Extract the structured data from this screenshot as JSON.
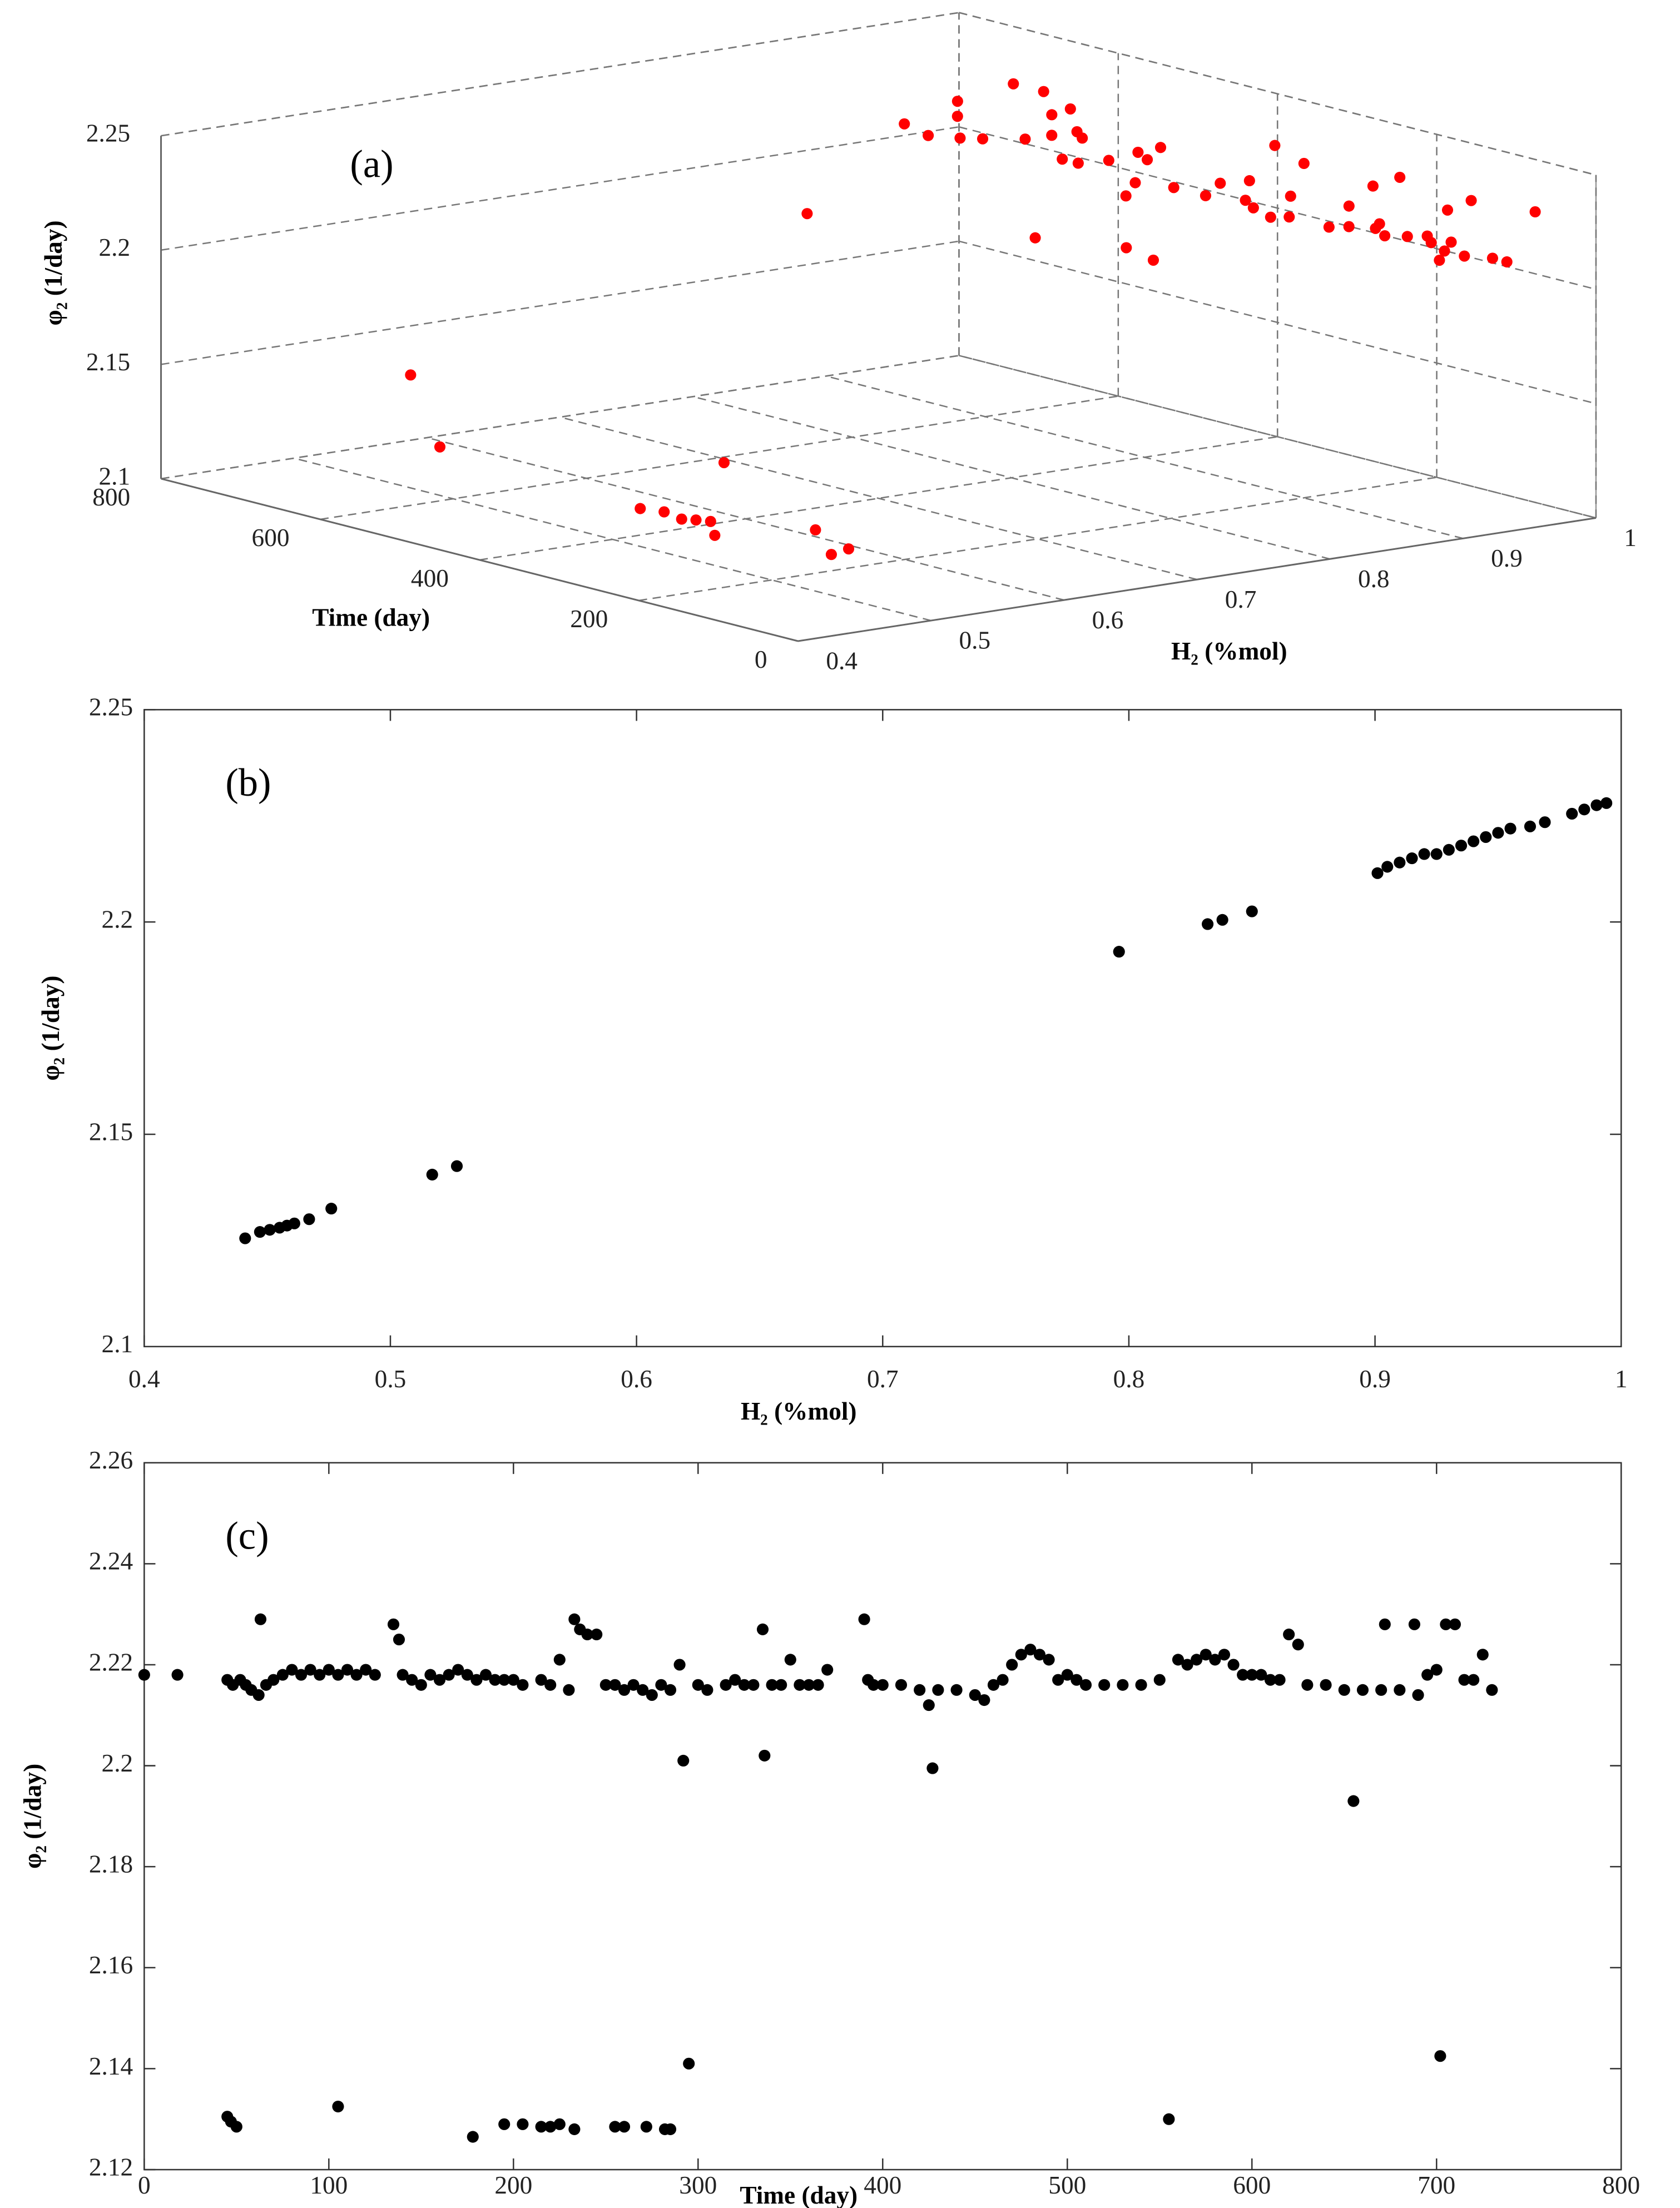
{
  "chart_data": [
    {
      "type": "scatter3d",
      "annotation": "(a)",
      "xlabel": "H₂ (%mol)",
      "ylabel": "Time (day)",
      "zlabel": "φ₂ (1/day)",
      "color": "#ff0000",
      "grid": true,
      "xlim": [
        0.4,
        1
      ],
      "xticks": [
        0.4,
        0.5,
        0.6,
        0.7,
        0.8,
        0.9,
        1
      ],
      "ylim": [
        0,
        800
      ],
      "yticks": [
        0,
        200,
        400,
        600,
        800
      ],
      "zlim": [
        2.1,
        2.25
      ],
      "zticks": [
        2.1,
        2.15,
        2.2,
        2.25
      ],
      "x": [
        0.933,
        0.933,
        0.928,
        0.917,
        0.992,
        0.928,
        0.939,
        0.933,
        0.939,
        0.933,
        0.987,
        0.971,
        0.928,
        0.933,
        0.939,
        0.928,
        0.922,
        0.949,
        0.992,
        0.976,
        0.922,
        0.917,
        0.944,
        0.842,
        0.521,
        0.922,
        0.928,
        0.981,
        0.848,
        0.949,
        0.922,
        0.939,
        0.992,
        0.922,
        0.901,
        0.834,
        0.917,
        0.944,
        0.96,
        0.949,
        0.933,
        0.922,
        0.922,
        0.463,
        0.949,
        0.954,
        0.944,
        0.933,
        0.976,
        0.965,
        0.922,
        0.799,
        0.917,
        0.987,
        0.911,
        0.939,
        0.529,
        0.987,
        0.954,
        0.917,
        0.465,
        0.455,
        0.476,
        0.444,
        0.457,
        0.455,
        0.452,
        0.455,
        0.452
      ],
      "y": [
        0,
        18,
        45,
        58,
        63,
        70,
        80,
        95,
        110,
        125,
        135,
        138,
        145,
        165,
        170,
        190,
        205,
        225,
        233,
        240,
        255,
        270,
        290,
        292,
        295,
        300,
        320,
        335,
        336,
        350,
        360,
        370,
        390,
        400,
        425,
        427,
        440,
        470,
        480,
        490,
        500,
        520,
        540,
        555,
        560,
        575,
        590,
        605,
        620,
        625,
        640,
        655,
        660,
        672,
        690,
        700,
        702,
        710,
        725,
        730,
        45,
        50,
        105,
        178,
        205,
        220,
        233,
        260,
        285
      ],
      "z": [
        2.218,
        2.218,
        2.217,
        2.215,
        2.229,
        2.217,
        2.219,
        2.218,
        2.219,
        2.218,
        2.228,
        2.225,
        2.217,
        2.218,
        2.219,
        2.217,
        2.216,
        2.221,
        2.229,
        2.226,
        2.216,
        2.215,
        2.22,
        2.201,
        2.141,
        2.216,
        2.217,
        2.227,
        2.202,
        2.221,
        2.216,
        2.219,
        2.229,
        2.216,
        2.212,
        2.1995,
        2.215,
        2.22,
        2.223,
        2.221,
        2.218,
        2.216,
        2.216,
        2.13,
        2.221,
        2.222,
        2.22,
        2.218,
        2.226,
        2.224,
        2.216,
        2.193,
        2.215,
        2.228,
        2.214,
        2.219,
        2.1425,
        2.228,
        2.222,
        2.215,
        2.1305,
        2.1285,
        2.1325,
        2.1265,
        2.129,
        2.1285,
        2.128,
        2.1285,
        2.128
      ]
    },
    {
      "type": "scatter",
      "annotation": "(b)",
      "xlabel": "H₂ (%mol)",
      "ylabel": "φ₂ (1/day)",
      "color": "#000000",
      "xlim": [
        0.4,
        1
      ],
      "xticks": [
        0.4,
        0.5,
        0.6,
        0.7,
        0.8,
        0.9,
        1
      ],
      "ylim": [
        2.1,
        2.25
      ],
      "yticks": [
        2.1,
        2.15,
        2.2,
        2.25
      ],
      "x": [
        0.441,
        0.447,
        0.451,
        0.455,
        0.458,
        0.461,
        0.467,
        0.476,
        0.517,
        0.527,
        0.796,
        0.832,
        0.838,
        0.85,
        0.901,
        0.905,
        0.91,
        0.915,
        0.92,
        0.925,
        0.93,
        0.935,
        0.94,
        0.945,
        0.95,
        0.955,
        0.963,
        0.969,
        0.98,
        0.985,
        0.99,
        0.994
      ],
      "values": [
        2.1255,
        2.127,
        2.1275,
        2.128,
        2.1285,
        2.129,
        2.13,
        2.1325,
        2.1405,
        2.1425,
        2.193,
        2.1995,
        2.2005,
        2.2025,
        2.2115,
        2.213,
        2.214,
        2.215,
        2.216,
        2.216,
        2.217,
        2.218,
        2.219,
        2.22,
        2.221,
        2.222,
        2.2225,
        2.2235,
        2.2255,
        2.2265,
        2.2275,
        2.228
      ]
    },
    {
      "type": "scatter",
      "annotation": "(c)",
      "xlabel": "Time (day)",
      "ylabel": "φ₂ (1/day)",
      "color": "#000000",
      "xlim": [
        0,
        800
      ],
      "xticks": [
        0,
        100,
        200,
        300,
        400,
        500,
        600,
        700,
        800
      ],
      "ylim": [
        2.12,
        2.26
      ],
      "yticks": [
        2.12,
        2.14,
        2.16,
        2.18,
        2.2,
        2.22,
        2.24,
        2.26
      ],
      "x": [
        0,
        18,
        45,
        48,
        52,
        55,
        58,
        62,
        63,
        66,
        70,
        75,
        80,
        85,
        90,
        95,
        100,
        105,
        110,
        115,
        120,
        125,
        135,
        138,
        140,
        145,
        150,
        155,
        160,
        165,
        170,
        175,
        180,
        185,
        190,
        195,
        200,
        205,
        215,
        220,
        225,
        230,
        233,
        236,
        240,
        245,
        250,
        255,
        260,
        265,
        270,
        275,
        280,
        285,
        290,
        292,
        295,
        300,
        305,
        315,
        320,
        325,
        330,
        335,
        336,
        340,
        345,
        350,
        355,
        360,
        365,
        370,
        390,
        392,
        395,
        400,
        410,
        420,
        425,
        427,
        430,
        440,
        450,
        455,
        460,
        465,
        470,
        475,
        480,
        485,
        490,
        495,
        500,
        505,
        510,
        520,
        530,
        540,
        550,
        555,
        560,
        565,
        570,
        575,
        580,
        585,
        590,
        595,
        600,
        605,
        610,
        615,
        620,
        625,
        630,
        640,
        650,
        655,
        660,
        670,
        672,
        680,
        688,
        690,
        695,
        700,
        702,
        705,
        710,
        715,
        720,
        725,
        730,
        45,
        47,
        50,
        105,
        178,
        195,
        205,
        215,
        220,
        225,
        233,
        255,
        260,
        272,
        282,
        285
      ],
      "values": [
        2.218,
        2.218,
        2.217,
        2.216,
        2.217,
        2.216,
        2.215,
        2.214,
        2.229,
        2.216,
        2.217,
        2.218,
        2.219,
        2.218,
        2.219,
        2.218,
        2.219,
        2.218,
        2.219,
        2.218,
        2.219,
        2.218,
        2.228,
        2.225,
        2.218,
        2.217,
        2.216,
        2.218,
        2.217,
        2.218,
        2.219,
        2.218,
        2.217,
        2.218,
        2.217,
        2.217,
        2.217,
        2.216,
        2.217,
        2.216,
        2.221,
        2.215,
        2.229,
        2.227,
        2.226,
        2.226,
        2.216,
        2.216,
        2.215,
        2.216,
        2.215,
        2.214,
        2.216,
        2.215,
        2.22,
        2.201,
        2.141,
        2.216,
        2.215,
        2.216,
        2.217,
        2.216,
        2.216,
        2.227,
        2.202,
        2.216,
        2.216,
        2.221,
        2.216,
        2.216,
        2.216,
        2.219,
        2.229,
        2.217,
        2.216,
        2.216,
        2.216,
        2.215,
        2.212,
        2.1995,
        2.215,
        2.215,
        2.214,
        2.213,
        2.216,
        2.217,
        2.22,
        2.222,
        2.223,
        2.222,
        2.221,
        2.217,
        2.218,
        2.217,
        2.216,
        2.216,
        2.216,
        2.216,
        2.217,
        2.13,
        2.221,
        2.22,
        2.221,
        2.222,
        2.221,
        2.222,
        2.22,
        2.218,
        2.218,
        2.218,
        2.217,
        2.217,
        2.226,
        2.224,
        2.216,
        2.216,
        2.215,
        2.193,
        2.215,
        2.215,
        2.228,
        2.215,
        2.228,
        2.214,
        2.218,
        2.219,
        2.1425,
        2.228,
        2.228,
        2.217,
        2.217,
        2.222,
        2.215,
        2.1305,
        2.1295,
        2.1285,
        2.1325,
        2.1265,
        2.129,
        2.129,
        2.1285,
        2.1285,
        2.129,
        2.128,
        2.1285,
        2.1285,
        2.1285,
        2.128,
        2.128
      ]
    }
  ]
}
